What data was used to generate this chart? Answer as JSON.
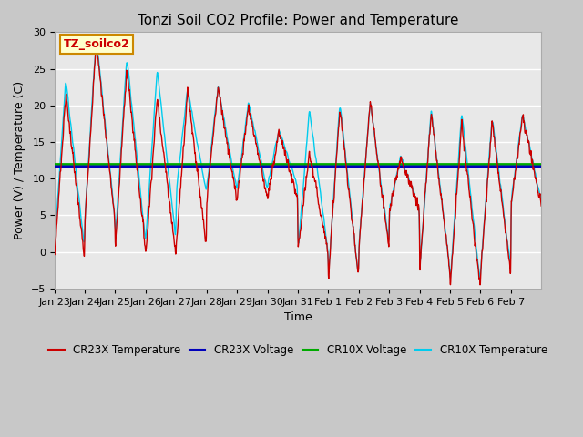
{
  "title": "Tonzi Soil CO2 Profile: Power and Temperature",
  "xlabel": "Time",
  "ylabel": "Power (V) / Temperature (C)",
  "ylim": [
    -5,
    30
  ],
  "yticks": [
    -5,
    0,
    5,
    10,
    15,
    20,
    25,
    30
  ],
  "cr23x_voltage": 11.65,
  "cr10x_voltage": 11.95,
  "annotation_text": "TZ_soilco2",
  "plot_bg_color": "#e8e8e8",
  "fig_bg_color": "#c8c8c8",
  "cr23x_temp_color": "#cc0000",
  "cr23x_volt_color": "#0000bb",
  "cr10x_volt_color": "#00aa00",
  "cr10x_temp_color": "#00ccee",
  "xtick_labels": [
    "Jan 23",
    "Jan 24",
    "Jan 25",
    "Jan 26",
    "Jan 27",
    "Jan 28",
    "Jan 29",
    "Jan 30",
    "Jan 31",
    "Feb 1",
    "Feb 2",
    "Feb 3",
    "Feb 4",
    "Feb 5",
    "Feb 6",
    "Feb 7"
  ],
  "n_days": 16,
  "peak_highs_r": [
    21.5,
    28.7,
    25.0,
    21.0,
    22.2,
    22.5,
    19.8,
    16.5,
    13.5,
    19.5,
    20.5,
    13.0,
    19.0,
    17.5,
    18.0,
    18.5
  ],
  "peak_lows_r": [
    -1.0,
    4.0,
    0.5,
    -0.5,
    0.5,
    7.0,
    7.5,
    7.0,
    0.0,
    -3.5,
    0.5,
    5.5,
    -2.5,
    -5.0,
    -3.0,
    6.5
  ],
  "peak_highs_c": [
    23.5,
    29.3,
    26.7,
    25.0,
    22.3,
    22.5,
    20.5,
    16.7,
    19.5,
    20.5,
    20.5,
    13.0,
    19.4,
    19.2,
    18.5,
    18.8
  ],
  "peak_lows_c": [
    0.5,
    4.5,
    1.5,
    1.5,
    8.0,
    8.5,
    8.5,
    9.0,
    0.0,
    -3.5,
    1.0,
    6.0,
    -2.5,
    -4.5,
    -2.5,
    7.0
  ]
}
